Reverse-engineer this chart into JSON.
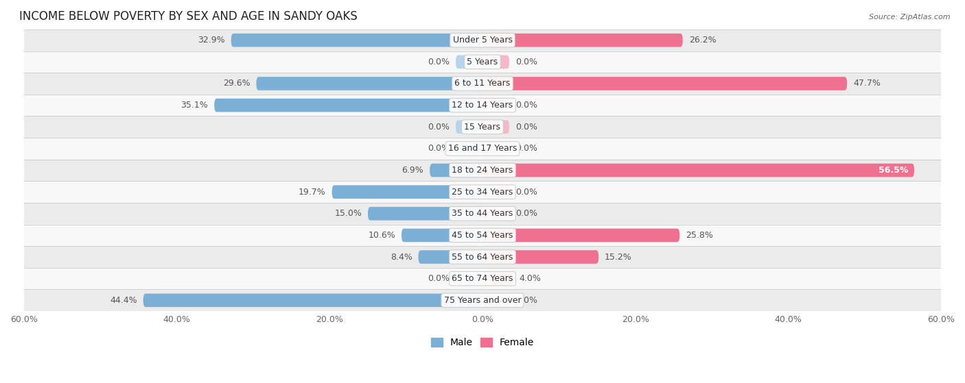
{
  "title": "INCOME BELOW POVERTY BY SEX AND AGE IN SANDY OAKS",
  "source": "Source: ZipAtlas.com",
  "categories": [
    "Under 5 Years",
    "5 Years",
    "6 to 11 Years",
    "12 to 14 Years",
    "15 Years",
    "16 and 17 Years",
    "18 to 24 Years",
    "25 to 34 Years",
    "35 to 44 Years",
    "45 to 54 Years",
    "55 to 64 Years",
    "65 to 74 Years",
    "75 Years and over"
  ],
  "male": [
    32.9,
    0.0,
    29.6,
    35.1,
    0.0,
    0.0,
    6.9,
    19.7,
    15.0,
    10.6,
    8.4,
    0.0,
    44.4
  ],
  "female": [
    26.2,
    0.0,
    47.7,
    0.0,
    0.0,
    0.0,
    56.5,
    0.0,
    0.0,
    25.8,
    15.2,
    4.0,
    0.0
  ],
  "male_color": "#7bafd4",
  "female_color": "#f07090",
  "male_color_zero": "#b8d4ea",
  "female_color_zero": "#f4b8c8",
  "male_label": "Male",
  "female_label": "Female",
  "axis_limit": 60.0,
  "row_colors": [
    "#ebebeb",
    "#f8f8f8",
    "#ebebeb",
    "#f8f8f8",
    "#ebebeb",
    "#f8f8f8",
    "#ebebeb",
    "#f8f8f8",
    "#ebebeb",
    "#f8f8f8",
    "#ebebeb",
    "#f8f8f8",
    "#ebebeb"
  ],
  "bar_height": 0.62,
  "zero_stub": 3.5,
  "title_fontsize": 12,
  "label_fontsize": 9,
  "tick_fontsize": 9,
  "category_fontsize": 9
}
